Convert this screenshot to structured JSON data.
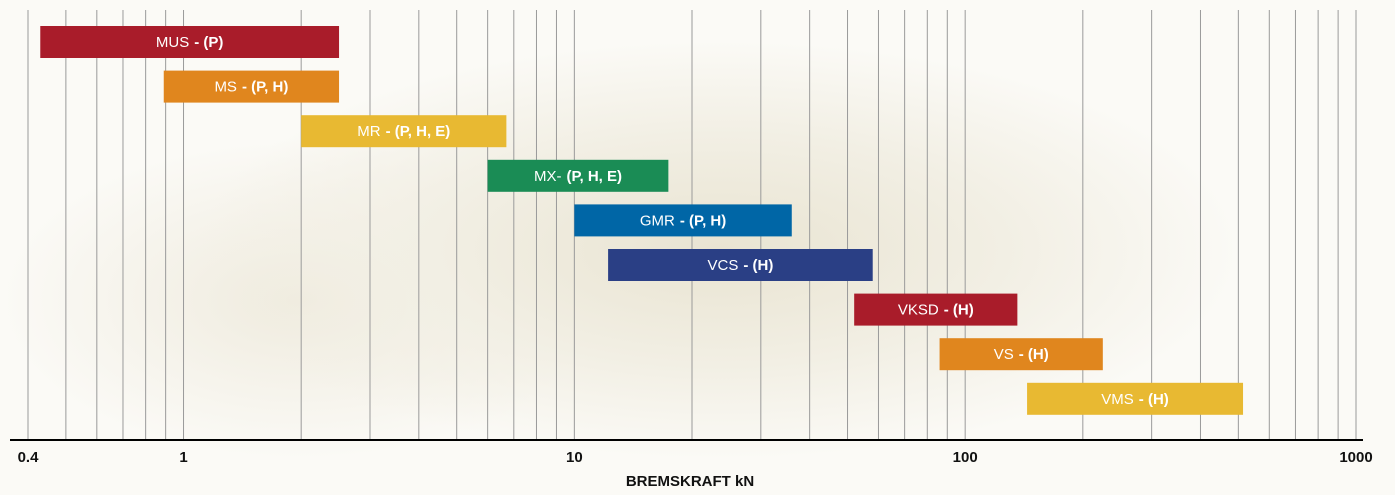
{
  "chart_data": {
    "type": "range-bar",
    "x_label": "BREMSKRAFT kN",
    "log_x": true,
    "xlim": [
      0.4,
      1000
    ],
    "xticks": [
      0.4,
      1,
      10,
      100,
      1000
    ],
    "minor_grid": [
      0.5,
      0.6,
      0.7,
      0.8,
      0.9,
      2,
      3,
      4,
      5,
      6,
      7,
      8,
      9,
      20,
      30,
      40,
      50,
      60,
      70,
      80,
      90,
      200,
      300,
      400,
      500,
      600,
      700,
      800,
      900
    ],
    "grid": true,
    "bars": [
      {
        "name": "MUS",
        "suffix": "- (P)",
        "color": "#a91c2a",
        "start": 0.43,
        "end": 2.5
      },
      {
        "name": "MS",
        "suffix": "- (P, H)",
        "color": "#e0861e",
        "start": 0.89,
        "end": 2.5
      },
      {
        "name": "MR",
        "suffix": "- (P, H, E)",
        "color": "#e8b932",
        "start": 2,
        "end": 6.7
      },
      {
        "name": "MX-",
        "suffix": "(P, H, E)",
        "color": "#1a8c55",
        "start": 6,
        "end": 17.4
      },
      {
        "name": "GMR",
        "suffix": "- (P, H)",
        "color": "#0066a6",
        "start": 10,
        "end": 36
      },
      {
        "name": "VCS",
        "suffix": "- (H)",
        "color": "#2a3f85",
        "start": 12.2,
        "end": 58
      },
      {
        "name": "VKSD",
        "suffix": "- (H)",
        "color": "#a91c2a",
        "start": 52,
        "end": 136
      },
      {
        "name": "VS",
        "suffix": "- (H)",
        "color": "#e0861e",
        "start": 86,
        "end": 225
      },
      {
        "name": "VMS",
        "suffix": "- (H)",
        "color": "#e8b932",
        "start": 144,
        "end": 514
      }
    ]
  }
}
